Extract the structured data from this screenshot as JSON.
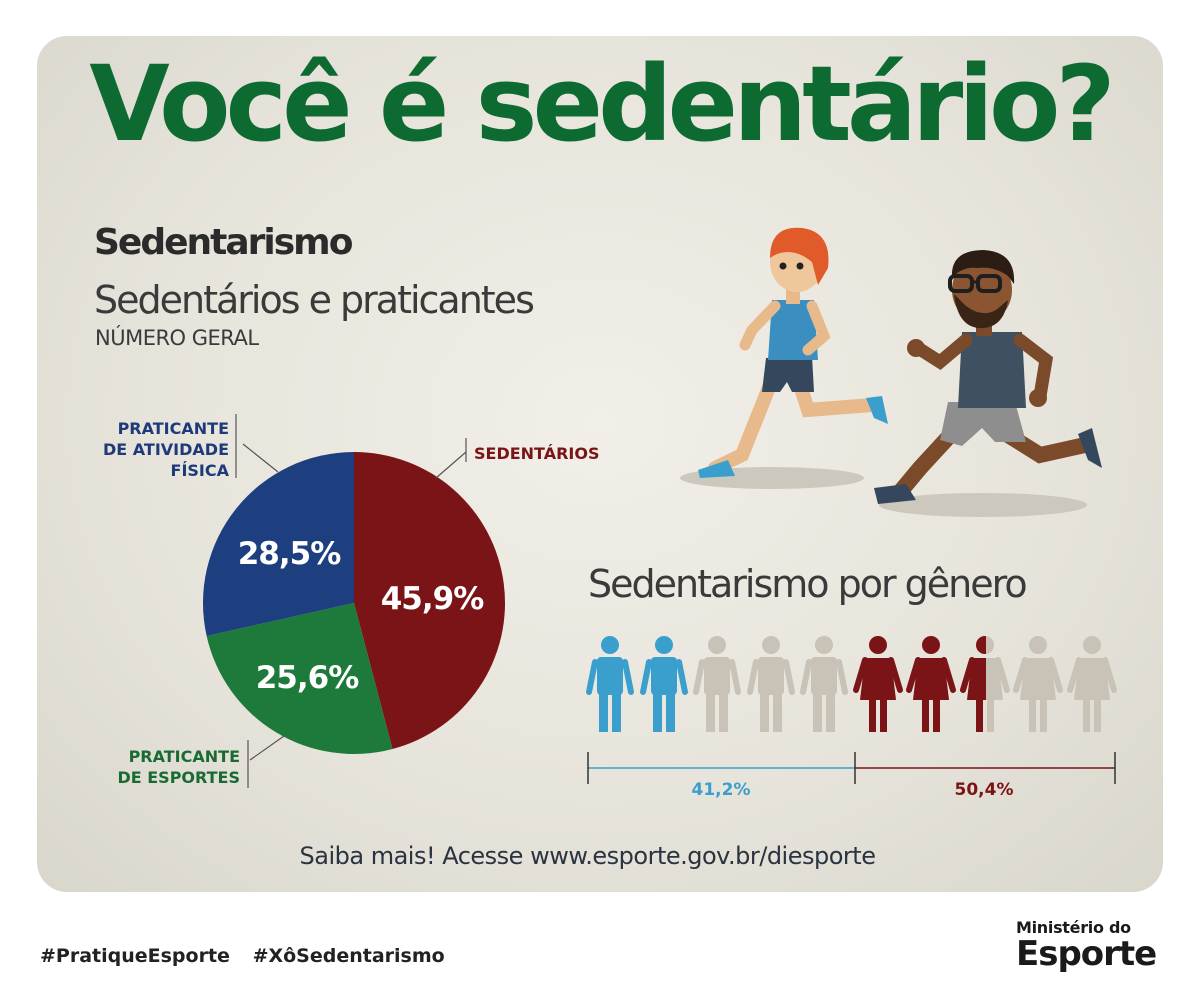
{
  "headline": "Você é sedentário?",
  "section": {
    "title": "Sedentarismo",
    "subtitle": "Sedentários e praticantes",
    "note": "NÚMERO GERAL"
  },
  "gender_title": "Sedentarismo por gênero",
  "footer": {
    "more": "Saiba mais! Acesse www.esporte.gov.br/diesporte",
    "hashtags": [
      "#PratiqueEsporte",
      "#XôSedentarismo"
    ],
    "logo_line1": "Ministério do",
    "logo_line2": "Esporte"
  },
  "colors": {
    "sedentarios": "#7a1416",
    "esportes": "#1e7a3a",
    "atividade": "#1e3f7f",
    "men": "#3a9fcc",
    "women": "#7a1416",
    "inactive": "#c9c2b6",
    "headline": "#0d6b32"
  },
  "chart_data": [
    {
      "type": "pie",
      "title": "Sedentários e praticantes",
      "subtitle": "NÚMERO GERAL",
      "slices": [
        {
          "label": "SEDENTÁRIOS",
          "value": 45.9,
          "display": "45,9%"
        },
        {
          "label": "PRATICANTE DE ESPORTES",
          "label_lines": [
            "PRATICANTE",
            "DE ESPORTES"
          ],
          "value": 25.6,
          "display": "25,6%"
        },
        {
          "label": "PRATICANTE DE ATIVIDADE FÍSICA",
          "label_lines": [
            "PRATICANTE",
            "DE ATIVIDADE",
            "FÍSICA"
          ],
          "value": 28.5,
          "display": "28,5%"
        }
      ]
    },
    {
      "type": "bar",
      "title": "Sedentarismo por gênero",
      "categories": [
        "men",
        "women"
      ],
      "values": [
        41.2,
        50.4
      ],
      "display": [
        "41,2%",
        "50,4%"
      ],
      "icons_per_group": 5
    }
  ]
}
